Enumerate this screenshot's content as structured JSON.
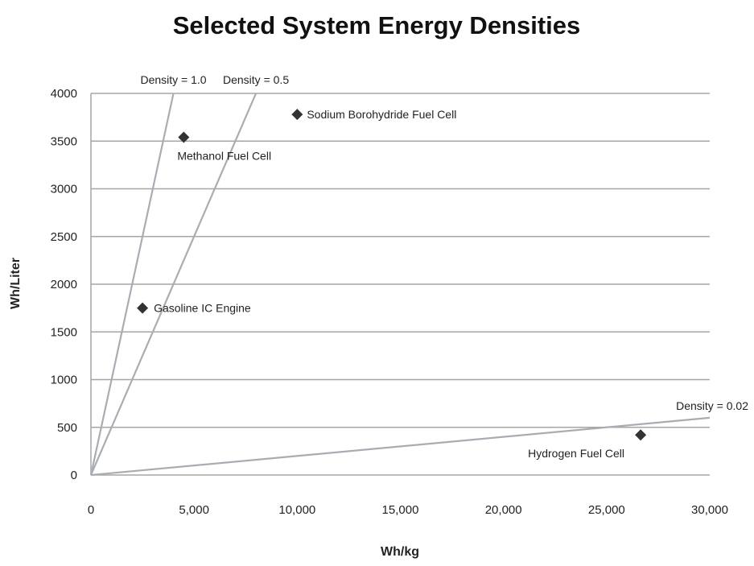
{
  "chart_data": {
    "type": "scatter",
    "title": "Selected System Energy Densities",
    "xlabel": "Wh/kg",
    "ylabel": "Wh/Liter",
    "xlim": [
      0,
      30000
    ],
    "ylim": [
      0,
      4000
    ],
    "x_ticks": [
      "0",
      "5,000",
      "10,000",
      "15,000",
      "20,000",
      "25,000",
      "30,000"
    ],
    "y_ticks": [
      "0",
      "500",
      "1000",
      "1500",
      "2000",
      "2500",
      "3000",
      "3500",
      "4000"
    ],
    "grid": "horizontal",
    "points": [
      {
        "label": "Methanol Fuel Cell",
        "x": 4500,
        "y": 3540
      },
      {
        "label": "Sodium Borohydride Fuel Cell",
        "x": 10000,
        "y": 3780
      },
      {
        "label": "Gasoline IC Engine",
        "x": 2500,
        "y": 1750
      },
      {
        "label": "Hydrogen Fuel Cell",
        "x": 26650,
        "y": 420
      }
    ],
    "reference_lines": [
      {
        "label": "Density = 1.0",
        "slope": 1.0
      },
      {
        "label": "Density = 0.5",
        "slope": 0.5
      },
      {
        "label": "Density = 0.02",
        "slope": 0.02
      }
    ],
    "colors": {
      "points": "#333333",
      "reference_lines": "#a9adb3",
      "grid": "#a6a6a6"
    }
  }
}
